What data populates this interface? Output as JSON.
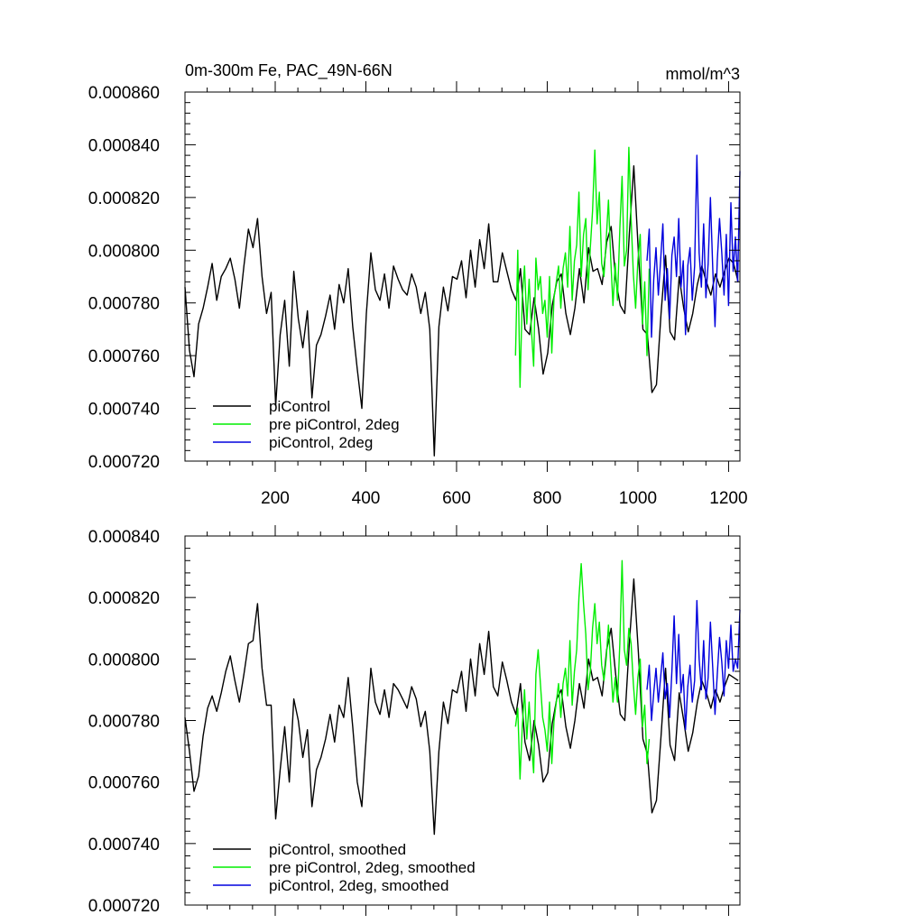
{
  "chart_data": [
    {
      "type": "line",
      "title": "0m-300m Fe, PAC_49N-66N",
      "units": "mmol/m^3",
      "xlim": [
        1,
        1225
      ],
      "ylim": [
        0.00072,
        0.00086
      ],
      "x_ticks": [
        200,
        400,
        600,
        800,
        1000,
        1200
      ],
      "x_tick_labels": [
        "200",
        "400",
        "600",
        "800",
        "1000",
        "1200"
      ],
      "y_ticks": [
        0.00072,
        0.00074,
        0.00076,
        0.00078,
        0.0008,
        0.00082,
        0.00084,
        0.00086
      ],
      "y_tick_labels": [
        "0.000720",
        "0.000740",
        "0.000760",
        "0.000780",
        "0.000800",
        "0.000820",
        "0.000840",
        "0.000860"
      ],
      "legend": [
        "piControl",
        "pre piControl, 2deg",
        "piControl, 2deg"
      ],
      "series": [
        {
          "name": "piControl",
          "color": "#000000",
          "x_start": 1,
          "x_step": 10,
          "values": [
            0.000786,
            0.000762,
            0.000752,
            0.000772,
            0.000778,
            0.000786,
            0.000795,
            0.000781,
            0.00079,
            0.000793,
            0.000797,
            0.000789,
            0.000778,
            0.000794,
            0.000808,
            0.000801,
            0.000812,
            0.00079,
            0.000776,
            0.000784,
            0.000741,
            0.000768,
            0.000781,
            0.000756,
            0.000792,
            0.000774,
            0.000763,
            0.000777,
            0.000744,
            0.000764,
            0.000768,
            0.000775,
            0.000783,
            0.00077,
            0.000787,
            0.00078,
            0.000793,
            0.000771,
            0.000755,
            0.00074,
            0.000776,
            0.000799,
            0.000785,
            0.000781,
            0.000791,
            0.000778,
            0.000794,
            0.000789,
            0.000785,
            0.000783,
            0.000791,
            0.000786,
            0.000776,
            0.000784,
            0.00077,
            0.000722,
            0.000771,
            0.000786,
            0.000777,
            0.00079,
            0.000789,
            0.000796,
            0.000782,
            0.0008,
            0.000786,
            0.000804,
            0.000793,
            0.00081,
            0.000788,
            0.000788,
            0.000799,
            0.000792,
            0.000785,
            0.000781,
            0.000793,
            0.00077,
            0.000768,
            0.000782,
            0.00077,
            0.000753,
            0.000761,
            0.000779,
            0.000788,
            0.000791,
            0.000776,
            0.000768,
            0.000778,
            0.000793,
            0.00078,
            0.000801,
            0.000792,
            0.000793,
            0.000787,
            0.000803,
            0.000809,
            0.000789,
            0.000779,
            0.000776,
            0.000806,
            0.000832,
            0.000799,
            0.00077,
            0.000768,
            0.000746,
            0.000749,
            0.000776,
            0.000798,
            0.000769,
            0.000766,
            0.00079,
            0.000778,
            0.000769,
            0.000776,
            0.000787,
            0.000794,
            0.000788,
            0.000783,
            0.000791,
            0.000786,
            0.000792,
            0.000797,
            0.000795,
            0.000788
          ]
        },
        {
          "name": "pre piControl, 2deg",
          "color": "#00ee00",
          "x_start": 730,
          "x_step": 5,
          "values": [
            0.00076,
            0.0008,
            0.000748,
            0.000782,
            0.000794,
            0.000772,
            0.000789,
            0.00077,
            0.000756,
            0.000797,
            0.000785,
            0.00079,
            0.000776,
            0.000781,
            0.000767,
            0.00079,
            0.000761,
            0.000782,
            0.000788,
            0.000794,
            0.000778,
            0.000793,
            0.000799,
            0.000786,
            0.000809,
            0.000781,
            0.000796,
            0.000802,
            0.000822,
            0.00079,
            0.000806,
            0.000812,
            0.000785,
            0.000801,
            0.000815,
            0.000838,
            0.00081,
            0.000822,
            0.000795,
            0.00079,
            0.000804,
            0.000819,
            0.000797,
            0.000779,
            0.000795,
            0.000781,
            0.000808,
            0.000828,
            0.000794,
            0.0008,
            0.000839,
            0.000812,
            0.000791,
            0.000778,
            0.000796,
            0.000806,
            0.000772,
            0.000788,
            0.00076,
            0.000793
          ]
        },
        {
          "name": "piControl, 2deg",
          "color": "#0000dd",
          "x_start": 1020,
          "x_step": 5,
          "values": [
            0.000796,
            0.000808,
            0.000767,
            0.000789,
            0.000801,
            0.000783,
            0.000796,
            0.00081,
            0.000781,
            0.000793,
            0.000774,
            0.000798,
            0.000805,
            0.00079,
            0.000812,
            0.000786,
            0.000796,
            0.000768,
            0.000794,
            0.000801,
            0.000781,
            0.000794,
            0.000836,
            0.000799,
            0.000786,
            0.00081,
            0.000782,
            0.000795,
            0.00082,
            0.000793,
            0.000771,
            0.000796,
            0.000812,
            0.000799,
            0.000783,
            0.000806,
            0.000779,
            0.000818,
            0.000792,
            0.000805,
            0.000788,
            0.00083
          ]
        }
      ]
    },
    {
      "type": "line",
      "title": "",
      "xlim": [
        1,
        1225
      ],
      "ylim": [
        0.00072,
        0.00084
      ],
      "y_ticks": [
        0.00072,
        0.00074,
        0.00076,
        0.00078,
        0.0008,
        0.00082,
        0.00084
      ],
      "y_tick_labels": [
        "0.000720",
        "0.000740",
        "0.000760",
        "0.000780",
        "0.000800",
        "0.000820",
        "0.000840"
      ],
      "legend": [
        "piControl, smoothed",
        "pre piControl, 2deg, smoothed",
        "piControl, 2deg, smoothed"
      ],
      "series": [
        {
          "name": "piControl, smoothed",
          "color": "#000000",
          "x_start": 1,
          "x_step": 10,
          "values": [
            0.000781,
            0.00077,
            0.000757,
            0.000762,
            0.000775,
            0.000784,
            0.000788,
            0.000783,
            0.000789,
            0.000796,
            0.000801,
            0.000793,
            0.000786,
            0.000795,
            0.000805,
            0.000806,
            0.000818,
            0.000797,
            0.000785,
            0.000785,
            0.000748,
            0.000764,
            0.000778,
            0.00076,
            0.000787,
            0.00078,
            0.000768,
            0.000777,
            0.000752,
            0.000764,
            0.000768,
            0.000774,
            0.000782,
            0.000773,
            0.000785,
            0.000781,
            0.000794,
            0.000778,
            0.00076,
            0.000752,
            0.000775,
            0.000797,
            0.000786,
            0.000782,
            0.00079,
            0.000781,
            0.000792,
            0.00079,
            0.000787,
            0.000784,
            0.000791,
            0.000787,
            0.000778,
            0.000783,
            0.00077,
            0.000743,
            0.00077,
            0.000786,
            0.000779,
            0.00079,
            0.000789,
            0.000796,
            0.000783,
            0.0008,
            0.000788,
            0.000805,
            0.000795,
            0.000809,
            0.000791,
            0.000788,
            0.000799,
            0.000793,
            0.000786,
            0.000782,
            0.000792,
            0.000773,
            0.000767,
            0.00078,
            0.000772,
            0.00076,
            0.000763,
            0.000779,
            0.000787,
            0.00079,
            0.000778,
            0.000771,
            0.00078,
            0.000792,
            0.000784,
            0.0008,
            0.000793,
            0.000794,
            0.000788,
            0.000803,
            0.00081,
            0.000795,
            0.000782,
            0.00078,
            0.000805,
            0.000826,
            0.000802,
            0.000774,
            0.000769,
            0.00075,
            0.000754,
            0.000775,
            0.000797,
            0.000772,
            0.000767,
            0.000789,
            0.00078,
            0.00077,
            0.000776,
            0.000786,
            0.000793,
            0.000789,
            0.000784,
            0.00079,
            0.000786,
            0.000791,
            0.000795,
            0.000794,
            0.000793
          ]
        },
        {
          "name": "pre piControl, 2deg, smoothed",
          "color": "#00ee00",
          "x_start": 730,
          "x_step": 5,
          "values": [
            0.000778,
            0.000784,
            0.000761,
            0.000778,
            0.00079,
            0.000774,
            0.000786,
            0.000773,
            0.000763,
            0.000795,
            0.000803,
            0.000792,
            0.000781,
            0.000777,
            0.00077,
            0.000786,
            0.000766,
            0.00078,
            0.000786,
            0.000792,
            0.000781,
            0.000792,
            0.000797,
            0.000788,
            0.000806,
            0.000785,
            0.000796,
            0.000803,
            0.00082,
            0.000831,
            0.000818,
            0.000808,
            0.00079,
            0.000796,
            0.00081,
            0.000818,
            0.000805,
            0.000812,
            0.000798,
            0.000793,
            0.0008,
            0.000811,
            0.000798,
            0.000786,
            0.000794,
            0.000786,
            0.000805,
            0.000832,
            0.000803,
            0.000798,
            0.00081,
            0.000805,
            0.000792,
            0.000782,
            0.000794,
            0.0008,
            0.000778,
            0.000785,
            0.000766,
            0.000774
          ]
        },
        {
          "name": "piControl, 2deg, smoothed",
          "color": "#0000dd",
          "x_start": 1020,
          "x_step": 5,
          "values": [
            0.00079,
            0.000798,
            0.00078,
            0.000789,
            0.000797,
            0.000786,
            0.000794,
            0.000802,
            0.000787,
            0.000792,
            0.000781,
            0.000796,
            0.000814,
            0.000792,
            0.000808,
            0.000789,
            0.000795,
            0.000777,
            0.000791,
            0.000798,
            0.000786,
            0.000793,
            0.000819,
            0.0008,
            0.00079,
            0.000806,
            0.000787,
            0.000794,
            0.000812,
            0.000797,
            0.000782,
            0.000795,
            0.000807,
            0.000799,
            0.000788,
            0.000806,
            0.000797,
            0.000811,
            0.000796,
            0.0008,
            0.000797,
            0.000816
          ]
        }
      ]
    }
  ]
}
